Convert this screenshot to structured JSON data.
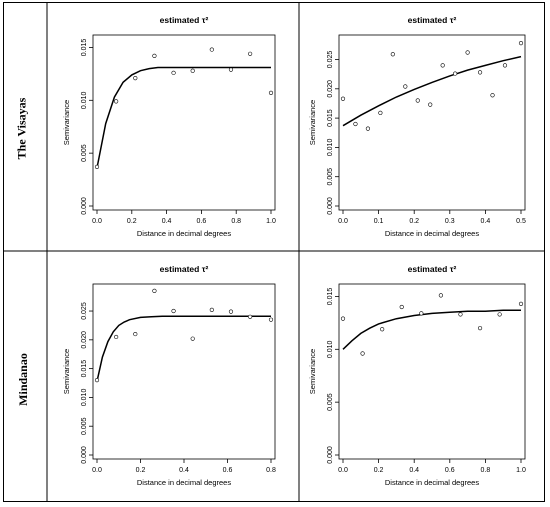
{
  "regions": [
    {
      "label": "The Visayas"
    },
    {
      "label": "Mindanao"
    }
  ],
  "chart_data": [
    {
      "type": "scatter",
      "region": "The Visayas",
      "title": "estimated τ²",
      "xlabel": "Distance in decimal degrees",
      "ylabel": "Semivariance",
      "xlim": [
        0,
        1.0
      ],
      "ylim": [
        0,
        0.0158
      ],
      "xticks": [
        "0.0",
        "0.2",
        "0.4",
        "0.6",
        "0.8",
        "1.0"
      ],
      "yticks": [
        "0.000",
        "0.005",
        "0.010",
        "0.015"
      ],
      "points": {
        "x": [
          0.0,
          0.11,
          0.22,
          0.33,
          0.44,
          0.55,
          0.66,
          0.77,
          0.88,
          1.0
        ],
        "y": [
          0.0037,
          0.0099,
          0.0121,
          0.0142,
          0.0126,
          0.0128,
          0.0148,
          0.0129,
          0.0144,
          0.0107
        ]
      },
      "fitted_curve": {
        "x": [
          0.0,
          0.05,
          0.1,
          0.15,
          0.2,
          0.25,
          0.3,
          0.35,
          0.4,
          0.5,
          0.6,
          0.7,
          0.8,
          0.9,
          1.0
        ],
        "y": [
          0.0036,
          0.0078,
          0.0103,
          0.0117,
          0.0124,
          0.0128,
          0.013,
          0.0131,
          0.0131,
          0.0131,
          0.0131,
          0.0131,
          0.0131,
          0.0131,
          0.0131
        ]
      },
      "grid": false
    },
    {
      "type": "scatter",
      "region": "The Visayas",
      "title": "estimated τ²",
      "xlabel": "Distance in decimal degrees",
      "ylabel": "Semivariance",
      "xlim": [
        0,
        0.5
      ],
      "ylim": [
        0,
        0.0285
      ],
      "xticks": [
        "0.0",
        "0.1",
        "0.2",
        "0.3",
        "0.4",
        "0.5"
      ],
      "yticks": [
        "0.000",
        "0.005",
        "0.010",
        "0.015",
        "0.020",
        "0.025"
      ],
      "points": {
        "x": [
          0.0,
          0.035,
          0.07,
          0.105,
          0.14,
          0.175,
          0.21,
          0.245,
          0.28,
          0.315,
          0.35,
          0.385,
          0.42,
          0.455,
          0.5
        ],
        "y": [
          0.0183,
          0.014,
          0.0132,
          0.0159,
          0.0259,
          0.0204,
          0.018,
          0.0173,
          0.024,
          0.0226,
          0.0262,
          0.0228,
          0.0189,
          0.024,
          0.0278
        ]
      },
      "fitted_curve": {
        "x": [
          0.0,
          0.05,
          0.1,
          0.15,
          0.2,
          0.25,
          0.3,
          0.35,
          0.4,
          0.45,
          0.5
        ],
        "y": [
          0.0137,
          0.0155,
          0.0171,
          0.0186,
          0.0199,
          0.0211,
          0.0222,
          0.0232,
          0.024,
          0.0248,
          0.0255
        ]
      },
      "grid": false
    },
    {
      "type": "scatter",
      "region": "Mindanao",
      "title": "estimated τ²",
      "xlabel": "Distance in decimal degrees",
      "ylabel": "Semivariance",
      "xlim": [
        0,
        0.8
      ],
      "ylim": [
        0,
        0.029
      ],
      "xticks": [
        "0.0",
        "0.2",
        "0.4",
        "0.6",
        "0.8"
      ],
      "yticks": [
        "0.000",
        "0.005",
        "0.010",
        "0.015",
        "0.020",
        "0.025"
      ],
      "points": {
        "x": [
          0.0,
          0.088,
          0.176,
          0.264,
          0.352,
          0.44,
          0.528,
          0.616,
          0.704,
          0.8
        ],
        "y": [
          0.013,
          0.0205,
          0.021,
          0.0285,
          0.025,
          0.0202,
          0.0252,
          0.0249,
          0.024,
          0.0235
        ]
      },
      "fitted_curve": {
        "x": [
          0.0,
          0.025,
          0.05,
          0.075,
          0.1,
          0.125,
          0.15,
          0.2,
          0.25,
          0.3,
          0.4,
          0.5,
          0.6,
          0.7,
          0.8
        ],
        "y": [
          0.0128,
          0.017,
          0.0197,
          0.0214,
          0.0225,
          0.0231,
          0.0235,
          0.0239,
          0.024,
          0.0241,
          0.0241,
          0.0241,
          0.0241,
          0.0241,
          0.0241
        ]
      },
      "grid": false
    },
    {
      "type": "scatter",
      "region": "Mindanao",
      "title": "estimated τ²",
      "xlabel": "Distance in decimal degrees",
      "ylabel": "Semivariance",
      "xlim": [
        0,
        1.0
      ],
      "ylim": [
        0,
        0.0158
      ],
      "xticks": [
        "0.0",
        "0.2",
        "0.4",
        "0.6",
        "0.8",
        "1.0"
      ],
      "yticks": [
        "0.000",
        "0.005",
        "0.010",
        "0.015"
      ],
      "points": {
        "x": [
          0.0,
          0.11,
          0.22,
          0.33,
          0.44,
          0.55,
          0.66,
          0.77,
          0.88,
          1.0
        ],
        "y": [
          0.0129,
          0.0096,
          0.0119,
          0.014,
          0.0134,
          0.0151,
          0.0133,
          0.012,
          0.0133,
          0.0143
        ]
      },
      "fitted_curve": {
        "x": [
          0.0,
          0.05,
          0.1,
          0.15,
          0.2,
          0.3,
          0.4,
          0.5,
          0.6,
          0.7,
          0.8,
          0.9,
          1.0
        ],
        "y": [
          0.01,
          0.0108,
          0.0115,
          0.012,
          0.0124,
          0.0129,
          0.0132,
          0.0134,
          0.0135,
          0.0136,
          0.0136,
          0.0137,
          0.0137
        ]
      },
      "grid": false
    }
  ]
}
